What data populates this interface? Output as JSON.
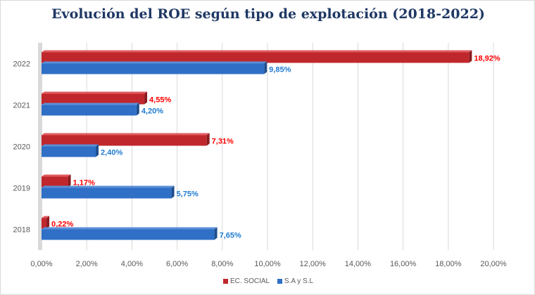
{
  "chart_data": {
    "type": "bar",
    "orientation": "horizontal",
    "title": "Evolución del ROE según tipo de explotación (2018-2022)",
    "categories": [
      "2018",
      "2019",
      "2020",
      "2021",
      "2022"
    ],
    "series": [
      {
        "name": "EC. SOCIAL",
        "color": "#c0272d",
        "label_color": "#ff0000",
        "values": [
          0.22,
          1.17,
          7.31,
          4.55,
          18.92
        ],
        "labels": [
          "0,22%",
          "1,17%",
          "7,31%",
          "4,55%",
          "18,92%"
        ]
      },
      {
        "name": "S.A y S.L",
        "color": "#2f6fc6",
        "label_color": "#1f7bd1",
        "values": [
          7.65,
          5.75,
          2.4,
          4.2,
          9.85
        ],
        "labels": [
          "7,65%",
          "5,75%",
          "2,40%",
          "4,20%",
          "9,85%"
        ]
      }
    ],
    "xlim": [
      0,
      20
    ],
    "xticks": [
      "0,00%",
      "2,00%",
      "4,00%",
      "6,00%",
      "8,00%",
      "10,00%",
      "12,00%",
      "14,00%",
      "16,00%",
      "18,00%",
      "20,00%"
    ],
    "grid": true,
    "legend_position": "bottom",
    "style": "3d"
  }
}
